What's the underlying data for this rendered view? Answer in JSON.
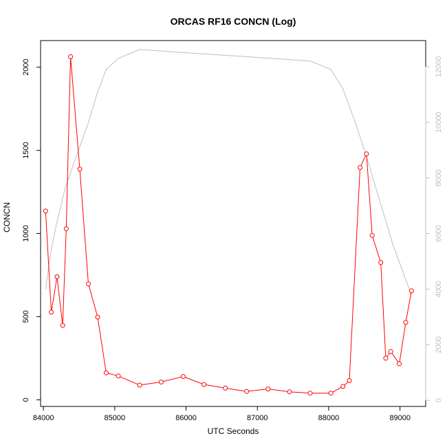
{
  "chart_data": {
    "type": "line",
    "title": "ORCAS RF16 CONCN (Log)",
    "xlabel": "UTC Seconds",
    "ylabel": "CONCN",
    "xlim": [
      83960,
      89360
    ],
    "ylim": [
      -40,
      2160
    ],
    "y2lim": [
      -220,
      12940
    ],
    "x_ticks": [
      84000,
      85000,
      86000,
      87000,
      88000,
      89000
    ],
    "y_ticks": [
      0,
      500,
      1000,
      1500,
      2000
    ],
    "y2_ticks": [
      0,
      2000,
      4000,
      6000,
      8000,
      10000,
      12000
    ],
    "grid": false,
    "legend": "none",
    "colors": {
      "concn": "#ff0000",
      "secondary": "#bebebe",
      "axis": "#000000"
    },
    "series": [
      {
        "axis": "left",
        "x": [
          84030,
          84110,
          84190,
          84270,
          84320,
          84380,
          84510,
          84630,
          84760,
          84880,
          85050,
          85350,
          85650,
          85960,
          86250,
          86550,
          86850,
          87150,
          87450,
          87740,
          88030,
          88200,
          88290,
          88440,
          88530,
          88610,
          88730,
          88800,
          88870,
          88990,
          89080,
          89160
        ],
        "y": [
          1135,
          527,
          740,
          447,
          1028,
          2063,
          1387,
          697,
          497,
          162,
          143,
          88,
          107,
          140,
          92,
          70,
          50,
          65,
          48,
          40,
          40,
          80,
          115,
          1397,
          1479,
          989,
          825,
          250,
          290,
          217,
          465,
          655
        ]
      },
      {
        "axis": "right",
        "x": [
          84030,
          84100,
          84180,
          84300,
          84450,
          84620,
          84760,
          84880,
          85050,
          85350,
          86000,
          86600,
          87200,
          87750,
          88030,
          88200,
          88400,
          88550,
          88700,
          88900,
          89130
        ],
        "y": [
          4000,
          5300,
          6300,
          7600,
          8700,
          9900,
          11100,
          11900,
          12300,
          12620,
          12500,
          12400,
          12300,
          12200,
          11900,
          11200,
          9800,
          8600,
          7300,
          5600,
          4000
        ]
      }
    ]
  }
}
